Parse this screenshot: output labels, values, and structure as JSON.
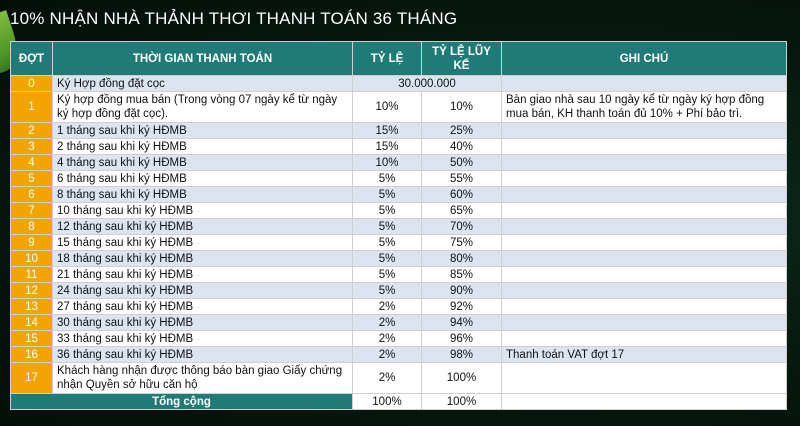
{
  "title": "10% NHẬN NHÀ THẢNH THƠI THANH TOÁN 36 THÁNG",
  "headers": {
    "dot": "ĐỢT",
    "time": "THỜI GIAN THANH TOÁN",
    "rate": "TỶ LỆ",
    "cumulative": "TỶ LỆ LŨY KẾ",
    "note": "GHI CHÚ"
  },
  "rows": [
    {
      "dot": "0",
      "time": "Ký Hợp đồng đặt cọc",
      "merged": "30.000.000",
      "note": ""
    },
    {
      "dot": "1",
      "time": "Ký hợp đồng mua bán (Trong vòng 07 ngày kể từ ngày ký hợp đồng đặt cọc).",
      "rate": "10%",
      "cumulative": "10%",
      "note": "Bàn giao nhà sau 10 ngày kể từ ngày ký hợp đồng mua bán, KH thanh toán đủ 10% + Phí bảo trì."
    },
    {
      "dot": "2",
      "time": "1 tháng sau khi ký HĐMB",
      "rate": "15%",
      "cumulative": "25%",
      "note": ""
    },
    {
      "dot": "3",
      "time": "2 tháng sau khi ký HĐMB",
      "rate": "15%",
      "cumulative": "40%",
      "note": ""
    },
    {
      "dot": "4",
      "time": "4 tháng sau khi ký HĐMB",
      "rate": "10%",
      "cumulative": "50%",
      "note": ""
    },
    {
      "dot": "5",
      "time": "6 tháng sau khi ký HĐMB",
      "rate": "5%",
      "cumulative": "55%",
      "note": ""
    },
    {
      "dot": "6",
      "time": "8 tháng sau khi ký HĐMB",
      "rate": "5%",
      "cumulative": "60%",
      "note": ""
    },
    {
      "dot": "7",
      "time": "10 tháng sau khi ký HĐMB",
      "rate": "5%",
      "cumulative": "65%",
      "note": ""
    },
    {
      "dot": "8",
      "time": "12 tháng sau khi ký HĐMB",
      "rate": "5%",
      "cumulative": "70%",
      "note": ""
    },
    {
      "dot": "9",
      "time": "15 tháng sau khi ký HĐMB",
      "rate": "5%",
      "cumulative": "75%",
      "note": ""
    },
    {
      "dot": "10",
      "time": "18 tháng sau khi ký HĐMB",
      "rate": "5%",
      "cumulative": "80%",
      "note": ""
    },
    {
      "dot": "11",
      "time": "21 tháng sau khi ký HĐMB",
      "rate": "5%",
      "cumulative": "85%",
      "note": ""
    },
    {
      "dot": "12",
      "time": "24 tháng sau khi ký HĐMB",
      "rate": "5%",
      "cumulative": "90%",
      "note": ""
    },
    {
      "dot": "13",
      "time": "27 tháng sau khi ký HĐMB",
      "rate": "2%",
      "cumulative": "92%",
      "note": ""
    },
    {
      "dot": "14",
      "time": "30 tháng sau khi ký HĐMB",
      "rate": "2%",
      "cumulative": "94%",
      "note": ""
    },
    {
      "dot": "15",
      "time": "33 tháng sau khi ký HĐMB",
      "rate": "2%",
      "cumulative": "96%",
      "note": ""
    },
    {
      "dot": "16",
      "time": "36 tháng sau khi ký HĐMB",
      "rate": "2%",
      "cumulative": "98%",
      "note": "Thanh toán VAT đợt 17"
    },
    {
      "dot": "17",
      "time": "Khách hàng nhận được thông báo bàn giao Giấy chứng nhận Quyền sở hữu căn hộ",
      "rate": "2%",
      "cumulative": "100%",
      "note": ""
    }
  ],
  "total": {
    "label": "Tổng cộng",
    "rate": "100%",
    "cumulative": "100%"
  },
  "colors": {
    "header_bg": "#1f7a78",
    "dot_bg": "#f2a400",
    "row_alt_bg": "#dde4f0"
  }
}
